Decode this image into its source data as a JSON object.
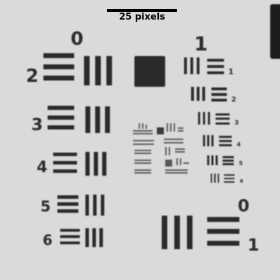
{
  "scale_bar": {
    "label": "25 pixels"
  },
  "target": {
    "group_labels": [
      "0",
      "1",
      "0"
    ],
    "element_labels": [
      "2",
      "3",
      "4",
      "5",
      "6",
      "1"
    ],
    "fine_element_labels": [
      "1",
      "2",
      "3",
      "4",
      "5",
      "6"
    ]
  },
  "colors": {
    "background": "#dadada",
    "bars": "#2a2a2a"
  }
}
